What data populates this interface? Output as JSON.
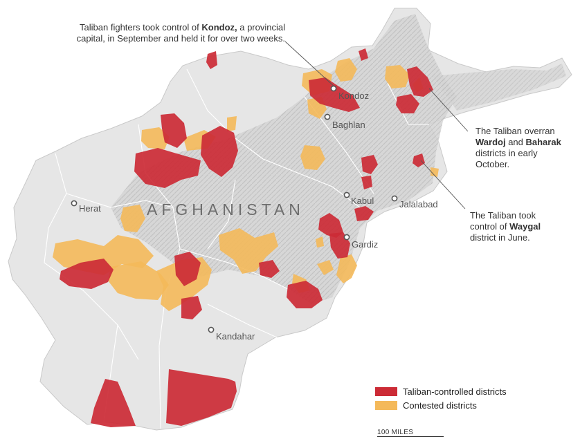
{
  "map": {
    "country_label": "AFGHANISTAN",
    "colors": {
      "taliban": "#cc2b36",
      "contested": "#f4b95a",
      "land": "#dcdcdc",
      "border": "#ffffff"
    }
  },
  "cities": [
    {
      "id": "herat",
      "name": "Herat"
    },
    {
      "id": "kondoz",
      "name": "Kondoz"
    },
    {
      "id": "baghlan",
      "name": "Baghlan"
    },
    {
      "id": "kabul",
      "name": "Kabul"
    },
    {
      "id": "jalalabad",
      "name": "Jalalabad"
    },
    {
      "id": "gardiz",
      "name": "Gardiz"
    },
    {
      "id": "kandahar",
      "name": "Kandahar"
    }
  ],
  "annotations": {
    "kondoz": {
      "line1_pre": "Taliban fighters took control of ",
      "line1_bold": "Kondoz,",
      "line1_post": " a provincial",
      "line2": "capital, in September and held it for over two weeks."
    },
    "wardoj": {
      "line1": "The Taliban overran",
      "line2_bold1": "Wardoj",
      "line2_mid": " and ",
      "line2_bold2": "Baharak",
      "line3": "districts in early",
      "line4": "October."
    },
    "waygal": {
      "line1": "The Taliban took",
      "line2_pre": "control of ",
      "line2_bold": "Waygal",
      "line3": "district in June."
    }
  },
  "legend": {
    "taliban": "Taliban-controlled districts",
    "contested": "Contested districts"
  },
  "scale": {
    "label": "100 MILES"
  }
}
